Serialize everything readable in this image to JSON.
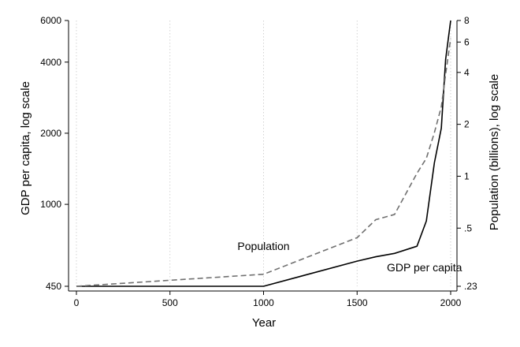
{
  "chart_data": {
    "type": "line",
    "xlabel": "Year",
    "ylabel_left": "GDP per capita, log scale",
    "ylabel_right": "Population (billions), log scale",
    "xlim": [
      0,
      2000
    ],
    "ylim_left": [
      450,
      6000
    ],
    "ylim_right": [
      0.23,
      8
    ],
    "yscale_left": "log",
    "yscale_right": "log",
    "x_ticks": [
      0,
      500,
      1000,
      1500,
      2000
    ],
    "x_tick_labels": [
      "0",
      "500",
      "1000",
      "1500",
      "2000"
    ],
    "y_left_ticks": [
      450,
      1000,
      2000,
      4000,
      6000
    ],
    "y_left_tick_labels": [
      "450",
      "1000",
      "2000",
      "4000",
      "6000"
    ],
    "y_right_ticks": [
      0.23,
      0.5,
      1,
      2,
      4,
      6,
      8
    ],
    "y_right_tick_labels": [
      ".23",
      ".5",
      "1",
      "2",
      "4",
      "6",
      "8"
    ],
    "grid": "vertical dotted",
    "series": [
      {
        "name": "GDP per capita",
        "axis": "left",
        "style": "solid",
        "color": "#000000",
        "x": [
          0,
          1000,
          1500,
          1600,
          1700,
          1820,
          1870,
          1913,
          1950,
          1973,
          2003
        ],
        "y": [
          450,
          450,
          575,
          600,
          620,
          665,
          850,
          1500,
          2100,
          4100,
          6000
        ]
      },
      {
        "name": "Population",
        "axis": "right",
        "style": "dashed",
        "color": "#707070",
        "x": [
          0,
          1000,
          1500,
          1600,
          1700,
          1820,
          1870,
          1913,
          1950,
          1973,
          2003
        ],
        "y": [
          0.23,
          0.27,
          0.44,
          0.56,
          0.6,
          1.04,
          1.27,
          1.79,
          2.53,
          3.9,
          6.3
        ]
      }
    ],
    "annotations": [
      {
        "text": "Population",
        "x": 1000,
        "y_left": 640
      },
      {
        "text": "GDP per capita",
        "x": 1860,
        "y_left": 520
      }
    ]
  }
}
